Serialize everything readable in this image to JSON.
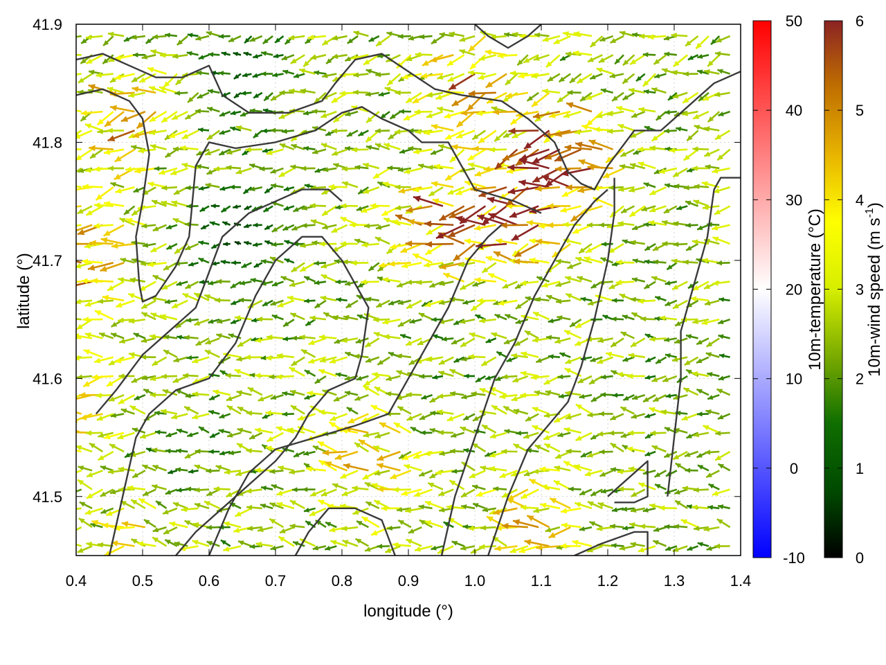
{
  "chart_data": {
    "type": "quiver",
    "xlabel": "longitude (°)",
    "ylabel": "latitude (°)",
    "xlim": [
      0.4,
      1.4
    ],
    "ylim": [
      41.45,
      41.9
    ],
    "x_ticks": [
      "0.4",
      "0.5",
      "0.6",
      "0.7",
      "0.8",
      "0.9",
      "1.0",
      "1.1",
      "1.2",
      "1.3",
      "1.4"
    ],
    "y_ticks": [
      "41.5",
      "41.6",
      "41.7",
      "41.8",
      "41.9"
    ],
    "grid": true,
    "grid_spacing_deg": 0.1,
    "field_grid_spacing_deg": 0.016,
    "wind_speed_regions": [
      {
        "lon": 1.14,
        "lat": 41.79,
        "speed_ms": 5.8
      },
      {
        "lon": 1.07,
        "lat": 41.74,
        "speed_ms": 5.2
      },
      {
        "lon": 0.95,
        "lat": 41.73,
        "speed_ms": 4.7
      },
      {
        "lon": 1.0,
        "lat": 41.85,
        "speed_ms": 4.4
      },
      {
        "lon": 0.48,
        "lat": 41.82,
        "speed_ms": 4.2
      },
      {
        "lon": 0.43,
        "lat": 41.7,
        "speed_ms": 4.6
      },
      {
        "lon": 0.41,
        "lat": 41.58,
        "speed_ms": 4.2
      },
      {
        "lon": 0.85,
        "lat": 41.53,
        "speed_ms": 3.9
      },
      {
        "lon": 1.1,
        "lat": 41.48,
        "speed_ms": 3.9
      },
      {
        "lon": 0.5,
        "lat": 41.46,
        "speed_ms": 3.7
      },
      {
        "lon": 0.65,
        "lat": 41.72,
        "speed_ms": 0.8
      },
      {
        "lon": 0.66,
        "lat": 41.86,
        "speed_ms": 1.2
      },
      {
        "lon": 0.55,
        "lat": 41.52,
        "speed_ms": 1.6
      },
      {
        "lon": 0.95,
        "lat": 41.62,
        "speed_ms": 2.2
      },
      {
        "lon": 1.3,
        "lat": 41.6,
        "speed_ms": 2.3
      }
    ],
    "wind_base_speed_ms": 2.4,
    "wind_direction": "mostly from east/north-east",
    "contour_lines": [
      [
        [
          0.4,
          41.87
        ],
        [
          0.44,
          41.875
        ],
        [
          0.48,
          41.865
        ],
        [
          0.52,
          41.855
        ],
        [
          0.56,
          41.855
        ],
        [
          0.6,
          41.865
        ],
        [
          0.62,
          41.84
        ],
        [
          0.66,
          41.825
        ],
        [
          0.72,
          41.825
        ],
        [
          0.77,
          41.835
        ],
        [
          0.79,
          41.85
        ],
        [
          0.82,
          41.87
        ],
        [
          0.86,
          41.875
        ],
        [
          0.9,
          41.86
        ],
        [
          0.94,
          41.845
        ],
        [
          0.98,
          41.84
        ],
        [
          1.04,
          41.835
        ],
        [
          1.08,
          41.82
        ],
        [
          1.12,
          41.8
        ],
        [
          1.14,
          41.775
        ],
        [
          1.16,
          41.765
        ],
        [
          1.18,
          41.76
        ],
        [
          1.2,
          41.78
        ],
        [
          1.24,
          41.81
        ],
        [
          1.28,
          41.81
        ],
        [
          1.32,
          41.83
        ],
        [
          1.36,
          41.85
        ],
        [
          1.4,
          41.86
        ]
      ],
      [
        [
          0.4,
          41.84
        ],
        [
          0.44,
          41.845
        ],
        [
          0.48,
          41.835
        ],
        [
          0.5,
          41.82
        ],
        [
          0.51,
          41.79
        ],
        [
          0.5,
          41.75
        ],
        [
          0.49,
          41.72
        ],
        [
          0.495,
          41.68
        ],
        [
          0.5,
          41.665
        ],
        [
          0.52,
          41.67
        ],
        [
          0.55,
          41.695
        ],
        [
          0.57,
          41.72
        ],
        [
          0.575,
          41.75
        ],
        [
          0.58,
          41.78
        ],
        [
          0.6,
          41.8
        ],
        [
          0.64,
          41.795
        ],
        [
          0.7,
          41.8
        ],
        [
          0.76,
          41.81
        ],
        [
          0.8,
          41.825
        ],
        [
          0.83,
          41.83
        ],
        [
          0.86,
          41.82
        ],
        [
          0.9,
          41.81
        ],
        [
          0.92,
          41.8
        ],
        [
          0.96,
          41.8
        ],
        [
          0.98,
          41.78
        ],
        [
          1.0,
          41.76
        ],
        [
          1.03,
          41.755
        ],
        [
          1.06,
          41.75
        ],
        [
          1.08,
          41.745
        ],
        [
          1.1,
          41.74
        ]
      ],
      [
        [
          0.45,
          41.45
        ],
        [
          0.47,
          41.5
        ],
        [
          0.49,
          41.55
        ],
        [
          0.51,
          41.57
        ],
        [
          0.55,
          41.59
        ],
        [
          0.6,
          41.6
        ],
        [
          0.64,
          41.63
        ],
        [
          0.67,
          41.67
        ],
        [
          0.7,
          41.7
        ],
        [
          0.74,
          41.72
        ],
        [
          0.77,
          41.72
        ],
        [
          0.8,
          41.7
        ],
        [
          0.82,
          41.68
        ],
        [
          0.84,
          41.66
        ],
        [
          0.83,
          41.62
        ],
        [
          0.82,
          41.6
        ],
        [
          0.78,
          41.59
        ],
        [
          0.75,
          41.57
        ],
        [
          0.73,
          41.55
        ],
        [
          0.7,
          41.53
        ],
        [
          0.66,
          41.51
        ],
        [
          0.62,
          41.49
        ],
        [
          0.58,
          41.47
        ],
        [
          0.55,
          41.45
        ]
      ],
      [
        [
          0.43,
          41.57
        ],
        [
          0.46,
          41.59
        ],
        [
          0.5,
          41.62
        ],
        [
          0.54,
          41.64
        ],
        [
          0.58,
          41.66
        ],
        [
          0.6,
          41.69
        ],
        [
          0.62,
          41.72
        ],
        [
          0.66,
          41.74
        ],
        [
          0.7,
          41.75
        ],
        [
          0.74,
          41.76
        ],
        [
          0.78,
          41.76
        ],
        [
          0.8,
          41.75
        ]
      ],
      [
        [
          0.6,
          41.45
        ],
        [
          0.63,
          41.49
        ],
        [
          0.66,
          41.52
        ],
        [
          0.7,
          41.54
        ],
        [
          0.76,
          41.55
        ],
        [
          0.82,
          41.56
        ],
        [
          0.87,
          41.57
        ],
        [
          0.9,
          41.6
        ],
        [
          0.93,
          41.63
        ],
        [
          0.96,
          41.66
        ],
        [
          0.99,
          41.7
        ],
        [
          1.02,
          41.72
        ],
        [
          1.04,
          41.73
        ]
      ],
      [
        [
          0.95,
          41.45
        ],
        [
          0.97,
          41.5
        ],
        [
          1.0,
          41.55
        ],
        [
          1.03,
          41.6
        ],
        [
          1.06,
          41.63
        ],
        [
          1.09,
          41.67
        ],
        [
          1.12,
          41.7
        ],
        [
          1.15,
          41.73
        ],
        [
          1.18,
          41.75
        ],
        [
          1.2,
          41.76
        ]
      ],
      [
        [
          1.02,
          41.45
        ],
        [
          1.05,
          41.5
        ],
        [
          1.08,
          41.54
        ],
        [
          1.11,
          41.56
        ],
        [
          1.14,
          41.58
        ],
        [
          1.16,
          41.61
        ],
        [
          1.18,
          41.65
        ],
        [
          1.2,
          41.7
        ],
        [
          1.21,
          41.74
        ],
        [
          1.21,
          41.77
        ]
      ],
      [
        [
          1.15,
          41.45
        ],
        [
          1.19,
          41.46
        ],
        [
          1.24,
          41.47
        ],
        [
          1.26,
          41.47
        ],
        [
          1.26,
          41.45
        ]
      ],
      [
        [
          1.2,
          41.5
        ],
        [
          1.24,
          41.52
        ],
        [
          1.26,
          41.53
        ],
        [
          1.26,
          41.5
        ],
        [
          1.24,
          41.495
        ],
        [
          1.21,
          41.495
        ]
      ],
      [
        [
          1.29,
          41.5
        ],
        [
          1.3,
          41.55
        ],
        [
          1.31,
          41.6
        ],
        [
          1.31,
          41.64
        ],
        [
          1.33,
          41.68
        ],
        [
          1.35,
          41.72
        ],
        [
          1.36,
          41.76
        ],
        [
          1.37,
          41.77
        ],
        [
          1.39,
          41.77
        ],
        [
          1.4,
          41.77
        ]
      ],
      [
        [
          0.88,
          41.45
        ],
        [
          0.86,
          41.48
        ],
        [
          0.82,
          41.49
        ],
        [
          0.78,
          41.49
        ],
        [
          0.75,
          41.47
        ],
        [
          0.73,
          41.45
        ]
      ],
      [
        [
          1.0,
          41.9
        ],
        [
          1.02,
          41.89
        ],
        [
          1.05,
          41.88
        ],
        [
          1.08,
          41.89
        ],
        [
          1.1,
          41.9
        ]
      ]
    ]
  },
  "colorbars": [
    {
      "label": "10m-temperature (°C)",
      "ticks": [
        "50",
        "40",
        "30",
        "20",
        "10",
        "0",
        "-10"
      ],
      "range": [
        -10,
        50
      ],
      "colors": [
        "#0000ff",
        "#ffffff",
        "#ff0000"
      ]
    },
    {
      "label": "10m-wind speed (m s",
      "label_sup": "-1",
      "label_end": ")",
      "ticks": [
        "6",
        "5",
        "4",
        "3",
        "2",
        "1",
        "0"
      ],
      "range": [
        0,
        6
      ],
      "colors": [
        "#000000",
        "#004a00",
        "#0f6e00",
        "#7aab00",
        "#d6ee00",
        "#ffff00",
        "#e8b400",
        "#c07000",
        "#8b2323"
      ]
    }
  ]
}
